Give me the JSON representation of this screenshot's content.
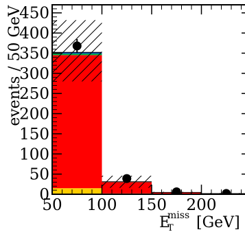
{
  "chart_data": {
    "type": "bar",
    "stacked": true,
    "xlabel_main": "E",
    "xlabel_sub": "T",
    "xlabel_sup": "miss",
    "xlabel_unit": "[GeV]",
    "ylabel": "events / 50 GeV",
    "xlim": [
      50,
      250
    ],
    "ylim": [
      0,
      470
    ],
    "x_ticks": [
      50,
      100,
      150,
      200
    ],
    "y_ticks": [
      0,
      50,
      100,
      150,
      200,
      250,
      300,
      350,
      400,
      450
    ],
    "bins": [
      [
        50,
        100
      ],
      [
        100,
        150
      ],
      [
        150,
        200
      ],
      [
        200,
        250
      ]
    ],
    "series": [
      {
        "color": "#ffcc00",
        "values": [
          15,
          2,
          0.3,
          0.1
        ]
      },
      {
        "color": "#ff0000",
        "values": [
          330,
          28,
          4,
          1.5
        ]
      },
      {
        "color": "#00aa44",
        "values": [
          4,
          0.5,
          0.1,
          0
        ]
      },
      {
        "color": "#0044cc",
        "values": [
          3,
          0.5,
          0.1,
          0
        ]
      }
    ],
    "uncertainty_band": {
      "pattern": "hatched",
      "low": [
        280,
        16,
        2,
        0.5
      ],
      "high": [
        432,
        46,
        6,
        3
      ]
    },
    "data_points": {
      "x": [
        75,
        125,
        175,
        225
      ],
      "y": [
        368,
        39,
        6,
        2
      ],
      "err": [
        17,
        6,
        2.5,
        1.5
      ]
    }
  }
}
